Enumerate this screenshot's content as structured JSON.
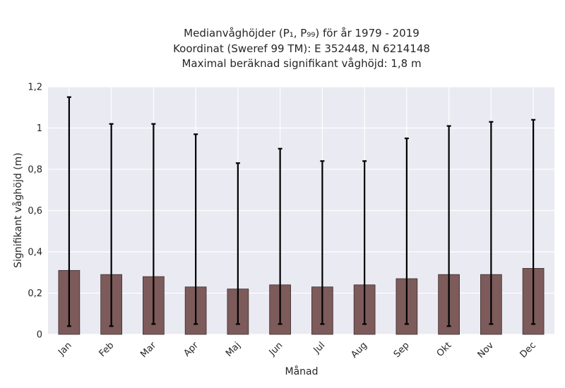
{
  "chart_data": {
    "type": "bar",
    "title_lines": [
      "Medianvåghöjder (P₁, P₉₉) för år 1979 - 2019",
      "Koordinat (Sweref 99 TM): E 352448, N 6214148",
      "Maximal beräknad signifikant våghöjd: 1,8 m"
    ],
    "xlabel": "Månad",
    "ylabel": "Signifikant våghöjd (m)",
    "categories": [
      "Jan",
      "Feb",
      "Mar",
      "Apr",
      "Maj",
      "Jun",
      "Jul",
      "Aug",
      "Sep",
      "Okt",
      "Nov",
      "Dec"
    ],
    "values": [
      0.31,
      0.29,
      0.28,
      0.23,
      0.22,
      0.24,
      0.23,
      0.24,
      0.27,
      0.29,
      0.29,
      0.32
    ],
    "p1": [
      0.04,
      0.04,
      0.05,
      0.05,
      0.05,
      0.05,
      0.05,
      0.05,
      0.05,
      0.04,
      0.05,
      0.05
    ],
    "p99": [
      1.15,
      1.02,
      1.02,
      0.97,
      0.83,
      0.9,
      0.84,
      0.84,
      0.95,
      1.01,
      1.03,
      1.04
    ],
    "ylim": [
      0,
      1.2
    ],
    "yticks": [
      "0",
      "0,2",
      "0,4",
      "0,6",
      "0,8",
      "1",
      "1,2"
    ],
    "ytick_values": [
      0,
      0.2,
      0.4,
      0.6,
      0.8,
      1.0,
      1.2
    ],
    "grid": true,
    "colors": {
      "bar": "#7d5b5b",
      "bar_edge": "#3a2a2a",
      "errorbar": "#000000",
      "background": "#eaeaf2",
      "grid": "#ffffff"
    }
  }
}
